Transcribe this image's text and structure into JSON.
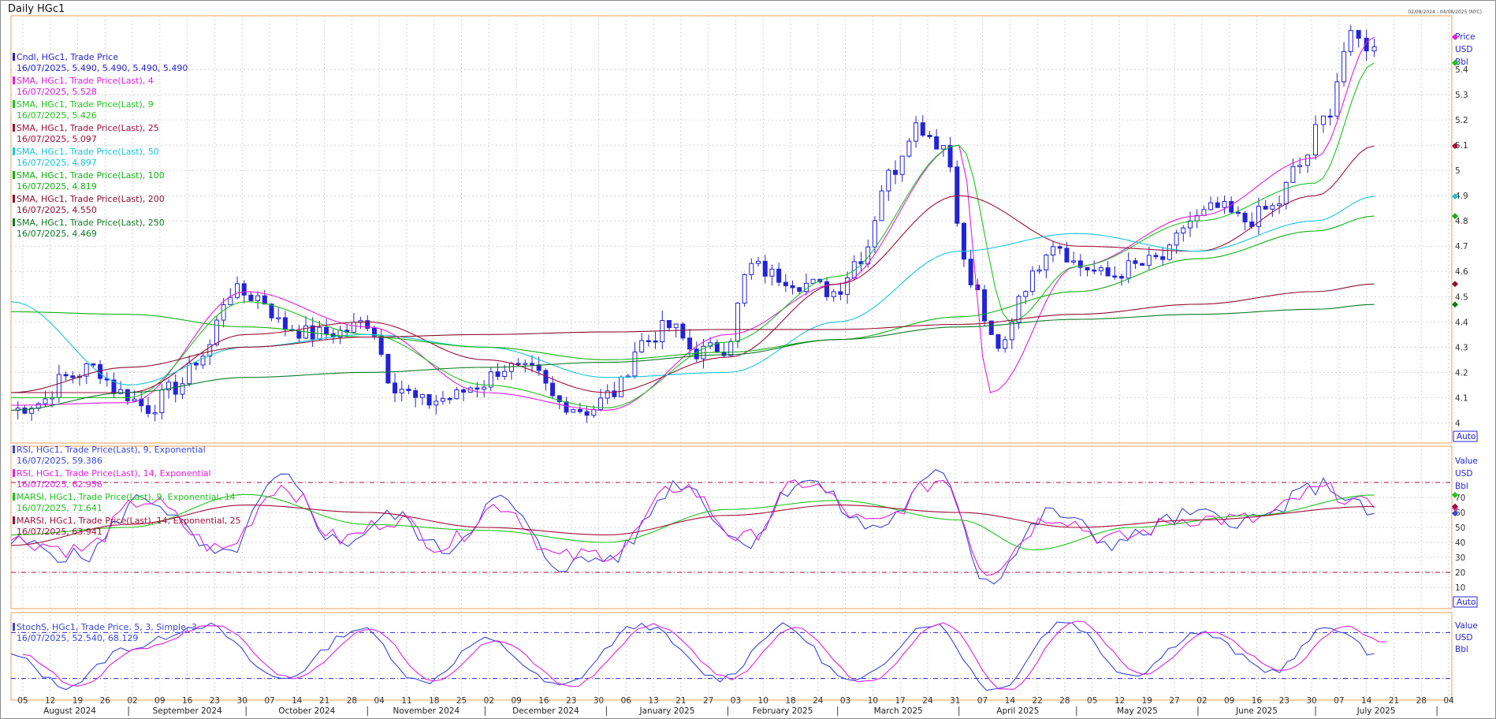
{
  "title": "Daily HGc1",
  "date_range": "02/08/2024 - 04/08/2025 (NYC)",
  "colors": {
    "blue": "#2323d8",
    "magenta": "#e020e0",
    "green": "#1fc41f",
    "maroon": "#a00f3a",
    "cyan": "#18c6d6",
    "green100": "#12b012",
    "maroon200": "#8c1030",
    "darkgreen250": "#0f7a25",
    "rsi_blue": "#3a46d8",
    "rsi_magenta": "#e020e0",
    "marsi_green": "#1fc41f",
    "marsi_maroon": "#a00f3a",
    "grid": "#c9c9c9",
    "frame": "#e8a25b"
  },
  "price_axis": {
    "title": "Price",
    "unit": "USD",
    "bbl": "Bbl",
    "auto": "Auto",
    "ticks": [
      "5.4",
      "5.3",
      "5.2",
      "5.1",
      "5",
      "4.9",
      "4.8",
      "4.7",
      "4.6",
      "4.5",
      "4.4",
      "4.3",
      "4.2",
      "4.1",
      "4"
    ]
  },
  "rsi_axis": {
    "title": "Value",
    "unit": "USD",
    "bbl": "Bbl",
    "auto": "Auto",
    "ticks": [
      "70",
      "60",
      "50",
      "40",
      "30",
      "20",
      "10"
    ]
  },
  "stoch_axis": {
    "title": "Value",
    "unit": "USD",
    "bbl": "Bbl"
  },
  "price_legend": [
    {
      "line1": "Cndl, HGc1, Trade Price",
      "line2": "16/07/2025, 5.490, 5.490, 5.490, 5.490",
      "color": "#2323d8"
    },
    {
      "line1": "SMA, HGc1, Trade Price(Last),  4",
      "line2": "16/07/2025, 5.528",
      "color": "#e020e0"
    },
    {
      "line1": "SMA, HGc1, Trade Price(Last),  9",
      "line2": "16/07/2025, 5.426",
      "color": "#1fc41f"
    },
    {
      "line1": "SMA, HGc1, Trade Price(Last),  25",
      "line2": "16/07/2025, 5.097",
      "color": "#a00f3a"
    },
    {
      "line1": "SMA, HGc1, Trade Price(Last),  50",
      "line2": "16/07/2025, 4.897",
      "color": "#18c6d6"
    },
    {
      "line1": "SMA, HGc1, Trade Price(Last),  100",
      "line2": "16/07/2025, 4.819",
      "color": "#12b012"
    },
    {
      "line1": "SMA, HGc1, Trade Price(Last),  200",
      "line2": "16/07/2025, 4.550",
      "color": "#8c1030"
    },
    {
      "line1": "SMA, HGc1, Trade Price(Last),  250",
      "line2": "16/07/2025, 4.469",
      "color": "#0f7a25"
    }
  ],
  "rsi_legend": [
    {
      "line1": "RSI, HGc1, Trade Price(Last),  9, Exponential",
      "line2": "16/07/2025, 59.386",
      "color": "#3a46d8"
    },
    {
      "line1": "RSI, HGc1, Trade Price(Last),  14, Exponential",
      "line2": "16/07/2025, 62.956",
      "color": "#e020e0"
    },
    {
      "line1": "MARSI, HGc1, Trade Price(Last),  9, Exponential, 14",
      "line2": "16/07/2025, 71.641",
      "color": "#1fc41f"
    },
    {
      "line1": "MARSI, HGc1, Trade Price(Last),  14, Exponential, 25",
      "line2": "16/07/2025, 63.941",
      "color": "#a00f3a"
    }
  ],
  "stoch_legend": [
    {
      "line1": "StochS, HGc1, Trade Price,  5, 3, Simple, 3",
      "line2": "16/07/2025, 52.540, 68.129",
      "color": "#3a46d8"
    }
  ],
  "x_day_ticks": [
    "05",
    "12",
    "19",
    "26",
    "02",
    "09",
    "16",
    "23",
    "30",
    "07",
    "14",
    "21",
    "28",
    "04",
    "11",
    "18",
    "25",
    "02",
    "09",
    "16",
    "23",
    "30",
    "06",
    "13",
    "21",
    "27",
    "03",
    "10",
    "18",
    "24",
    "03",
    "10",
    "17",
    "24",
    "31",
    "07",
    "14",
    "22",
    "28",
    "05",
    "12",
    "19",
    "27",
    "02",
    "09",
    "16",
    "23",
    "30",
    "07",
    "14",
    "21",
    "28",
    "04"
  ],
  "x_months": [
    "August 2024",
    "September 2024",
    "October 2024",
    "November 2024",
    "December 2024",
    "January 2025",
    "February 2025",
    "March 2025",
    "April 2025",
    "May 2025",
    "June 2025",
    "July 2025"
  ],
  "chart_data": [
    {
      "type": "line",
      "title": "Daily HGc1",
      "ylabel": "Price (USD)",
      "ylim": [
        3.92,
        5.6
      ],
      "x_range": [
        "2024-08-02",
        "2025-08-04"
      ],
      "grid": true,
      "series": [
        {
          "name": "Cndl, HGc1, Trade Price",
          "kind": "candle_close",
          "x": [
            "2024-08-02",
            "2024-08-09",
            "2024-08-16",
            "2024-08-23",
            "2024-08-30",
            "2024-09-06",
            "2024-09-13",
            "2024-09-20",
            "2024-09-27",
            "2024-10-04",
            "2024-10-11",
            "2024-10-18",
            "2024-10-25",
            "2024-11-01",
            "2024-11-08",
            "2024-11-15",
            "2024-11-22",
            "2024-11-29",
            "2024-12-06",
            "2024-12-13",
            "2024-12-20",
            "2024-12-27",
            "2025-01-03",
            "2025-01-10",
            "2025-01-17",
            "2025-01-24",
            "2025-01-31",
            "2025-02-07",
            "2025-02-14",
            "2025-02-21",
            "2025-02-28",
            "2025-03-07",
            "2025-03-14",
            "2025-03-21",
            "2025-03-28",
            "2025-04-04",
            "2025-04-11",
            "2025-04-18",
            "2025-04-25",
            "2025-05-02",
            "2025-05-09",
            "2025-05-16",
            "2025-05-23",
            "2025-05-30",
            "2025-06-06",
            "2025-06-13",
            "2025-06-20",
            "2025-06-27",
            "2025-07-03",
            "2025-07-10",
            "2025-07-16"
          ],
          "values": [
            4.05,
            4.08,
            4.18,
            4.22,
            4.12,
            4.06,
            4.14,
            4.27,
            4.52,
            4.5,
            4.38,
            4.35,
            4.36,
            4.4,
            4.15,
            4.08,
            4.1,
            4.15,
            4.22,
            4.2,
            4.08,
            4.05,
            4.12,
            4.32,
            4.38,
            4.28,
            4.3,
            4.62,
            4.58,
            4.55,
            4.52,
            4.66,
            4.98,
            5.18,
            5.1,
            4.55,
            4.28,
            4.55,
            4.72,
            4.62,
            4.58,
            4.62,
            4.65,
            4.8,
            4.85,
            4.8,
            4.85,
            5.02,
            5.2,
            5.52,
            5.49
          ]
        },
        {
          "name": "SMA, HGc1, Trade Price(Last),  4",
          "x": [
            "2024-08-02",
            "2024-09-01",
            "2024-10-01",
            "2024-11-01",
            "2024-12-01",
            "2025-01-01",
            "2025-02-01",
            "2025-03-01",
            "2025-04-01",
            "2025-04-09",
            "2025-05-01",
            "2025-06-01",
            "2025-07-01",
            "2025-07-16"
          ],
          "values": [
            4.07,
            4.08,
            4.52,
            4.38,
            4.12,
            4.05,
            4.35,
            4.55,
            5.1,
            4.12,
            4.62,
            4.82,
            5.05,
            5.528
          ]
        },
        {
          "name": "SMA, HGc1, Trade Price(Last),  9",
          "x": [
            "2024-08-02",
            "2024-09-01",
            "2024-10-01",
            "2024-11-01",
            "2024-12-01",
            "2025-01-01",
            "2025-02-01",
            "2025-03-01",
            "2025-04-01",
            "2025-04-14",
            "2025-05-01",
            "2025-06-01",
            "2025-07-01",
            "2025-07-16"
          ],
          "values": [
            4.1,
            4.1,
            4.48,
            4.35,
            4.15,
            4.06,
            4.32,
            4.58,
            5.1,
            4.4,
            4.62,
            4.8,
            4.95,
            5.426
          ]
        },
        {
          "name": "SMA, HGc1, Trade Price(Last),  25",
          "x": [
            "2024-08-02",
            "2024-09-01",
            "2024-10-01",
            "2024-11-01",
            "2024-12-01",
            "2025-01-01",
            "2025-02-01",
            "2025-03-01",
            "2025-04-01",
            "2025-05-01",
            "2025-06-01",
            "2025-07-01",
            "2025-07-16"
          ],
          "values": [
            4.12,
            4.12,
            4.35,
            4.4,
            4.25,
            4.12,
            4.26,
            4.55,
            4.9,
            4.7,
            4.68,
            4.9,
            5.097
          ]
        },
        {
          "name": "SMA, HGc1, Trade Price(Last),  50",
          "x": [
            "2024-08-02",
            "2024-09-01",
            "2024-10-01",
            "2024-11-01",
            "2024-12-01",
            "2025-01-01",
            "2025-02-01",
            "2025-03-01",
            "2025-04-01",
            "2025-05-01",
            "2025-06-01",
            "2025-07-01",
            "2025-07-16"
          ],
          "values": [
            4.48,
            4.15,
            4.3,
            4.35,
            4.3,
            4.18,
            4.2,
            4.4,
            4.68,
            4.75,
            4.68,
            4.8,
            4.897
          ]
        },
        {
          "name": "SMA, HGc1, Trade Price(Last),  100",
          "x": [
            "2024-08-02",
            "2024-09-01",
            "2024-10-01",
            "2024-11-01",
            "2024-12-01",
            "2025-01-01",
            "2025-02-01",
            "2025-03-01",
            "2025-04-01",
            "2025-05-01",
            "2025-06-01",
            "2025-07-01",
            "2025-07-16"
          ],
          "values": [
            4.44,
            4.43,
            4.38,
            4.34,
            4.3,
            4.25,
            4.28,
            4.33,
            4.42,
            4.52,
            4.65,
            4.76,
            4.819
          ]
        },
        {
          "name": "SMA, HGc1, Trade Price(Last),  200",
          "x": [
            "2024-08-02",
            "2024-09-01",
            "2024-10-01",
            "2024-11-01",
            "2024-12-01",
            "2025-01-01",
            "2025-02-01",
            "2025-03-01",
            "2025-04-01",
            "2025-05-01",
            "2025-06-01",
            "2025-07-01",
            "2025-07-16"
          ],
          "values": [
            4.12,
            4.22,
            4.3,
            4.34,
            4.35,
            4.36,
            4.37,
            4.37,
            4.39,
            4.43,
            4.47,
            4.52,
            4.55
          ]
        },
        {
          "name": "SMA, HGc1, Trade Price(Last),  250",
          "x": [
            "2024-08-02",
            "2024-09-01",
            "2024-10-01",
            "2024-11-01",
            "2024-12-01",
            "2025-01-01",
            "2025-02-01",
            "2025-03-01",
            "2025-04-01",
            "2025-05-01",
            "2025-06-01",
            "2025-07-01",
            "2025-07-16"
          ],
          "values": [
            4.05,
            4.12,
            4.18,
            4.2,
            4.22,
            4.24,
            4.27,
            4.33,
            4.38,
            4.41,
            4.43,
            4.45,
            4.469
          ]
        }
      ]
    },
    {
      "type": "line",
      "ylim": [
        0,
        100
      ],
      "reference_lines": [
        80,
        20
      ],
      "series": [
        {
          "name": "RSI, HGc1, Trade Price(Last),  9, Exponential",
          "x": [
            "2024-08-02",
            "2024-08-20",
            "2024-09-05",
            "2024-09-25",
            "2024-10-10",
            "2024-10-25",
            "2024-11-08",
            "2024-11-20",
            "2024-12-05",
            "2024-12-20",
            "2025-01-02",
            "2025-01-20",
            "2025-02-05",
            "2025-02-20",
            "2025-03-10",
            "2025-03-28",
            "2025-04-08",
            "2025-04-25",
            "2025-05-10",
            "2025-05-30",
            "2025-06-15",
            "2025-07-03",
            "2025-07-16"
          ],
          "values": [
            40,
            30,
            70,
            30,
            82,
            40,
            58,
            35,
            68,
            25,
            30,
            80,
            40,
            82,
            50,
            85,
            15,
            60,
            40,
            58,
            55,
            78,
            59.386
          ]
        },
        {
          "name": "RSI, HGc1, Trade Price(Last),  14, Exponential",
          "x": [
            "2024-08-02",
            "2024-08-20",
            "2024-09-05",
            "2024-09-25",
            "2024-10-10",
            "2024-10-25",
            "2024-11-08",
            "2024-11-20",
            "2024-12-05",
            "2024-12-20",
            "2025-01-02",
            "2025-01-20",
            "2025-02-05",
            "2025-02-20",
            "2025-03-10",
            "2025-03-28",
            "2025-04-08",
            "2025-04-25",
            "2025-05-10",
            "2025-05-30",
            "2025-06-15",
            "2025-07-03",
            "2025-07-16"
          ],
          "values": [
            42,
            35,
            68,
            35,
            78,
            42,
            56,
            38,
            65,
            30,
            33,
            78,
            42,
            80,
            52,
            82,
            22,
            58,
            42,
            56,
            55,
            75,
            62.956
          ]
        },
        {
          "name": "MARSI, HGc1, Trade Price(Last),  9, Exponential, 14",
          "x": [
            "2024-08-02",
            "2024-09-01",
            "2024-10-01",
            "2024-11-01",
            "2024-12-01",
            "2025-01-01",
            "2025-02-01",
            "2025-03-01",
            "2025-04-01",
            "2025-04-20",
            "2025-05-15",
            "2025-06-15",
            "2025-07-16"
          ],
          "values": [
            45,
            50,
            72,
            52,
            48,
            40,
            62,
            68,
            55,
            35,
            50,
            58,
            71.641
          ]
        },
        {
          "name": "MARSI, HGc1, Trade Price(Last),  14, Exponential, 25",
          "x": [
            "2024-08-02",
            "2024-09-01",
            "2024-10-01",
            "2024-11-01",
            "2024-12-01",
            "2025-01-01",
            "2025-02-01",
            "2025-03-01",
            "2025-04-01",
            "2025-05-01",
            "2025-06-01",
            "2025-07-16"
          ],
          "values": [
            38,
            52,
            65,
            60,
            50,
            45,
            58,
            65,
            60,
            50,
            55,
            63.941
          ]
        }
      ]
    },
    {
      "type": "line",
      "ylim": [
        0,
        100
      ],
      "reference_lines": [
        80,
        20
      ],
      "series": [
        {
          "name": "StochS, HGc1, Trade Price,  5, 3, Simple, 3",
          "x": [
            "2024-08-02",
            "2024-08-16",
            "2024-09-01",
            "2024-09-20",
            "2024-10-10",
            "2024-10-30",
            "2024-11-15",
            "2024-12-01",
            "2024-12-20",
            "2025-01-10",
            "2025-01-30",
            "2025-02-15",
            "2025-03-05",
            "2025-03-25",
            "2025-04-10",
            "2025-04-28",
            "2025-05-15",
            "2025-06-01",
            "2025-06-20",
            "2025-07-05",
            "2025-07-16"
          ],
          "values": [
            50,
            10,
            60,
            90,
            20,
            85,
            15,
            70,
            10,
            90,
            20,
            88,
            15,
            92,
            5,
            95,
            25,
            80,
            30,
            88,
            52.54
          ]
        }
      ]
    }
  ]
}
